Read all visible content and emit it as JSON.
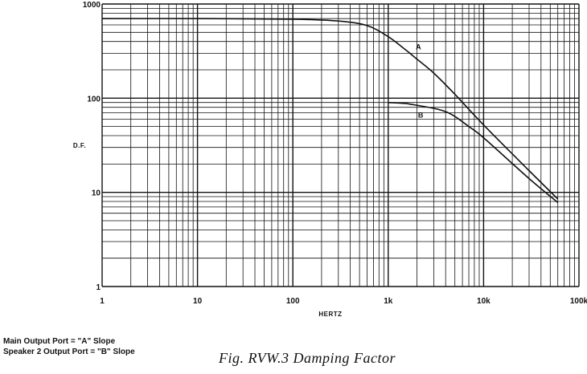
{
  "chart_data": {
    "type": "line",
    "title": "",
    "xlabel": "HERTZ",
    "ylabel": "D.F.",
    "x_scale": "log",
    "y_scale": "log",
    "xlim": [
      1,
      100000
    ],
    "ylim": [
      1,
      1000
    ],
    "grid": true,
    "x_tick_labels": [
      "1",
      "10",
      "100",
      "1k",
      "10k",
      "100k"
    ],
    "y_tick_labels": [
      "1000",
      "100",
      "10",
      "1"
    ],
    "series": [
      {
        "name": "A",
        "x": [
          1,
          10,
          100,
          300,
          600,
          1000,
          1500,
          2000,
          3000,
          5000,
          10000,
          30000,
          60000
        ],
        "y": [
          700,
          700,
          690,
          660,
          590,
          450,
          330,
          260,
          185,
          110,
          52,
          17,
          8.5
        ]
      },
      {
        "name": "B",
        "x": [
          1000,
          1500,
          2000,
          3000,
          4000,
          5000,
          7000,
          10000,
          30000,
          60000
        ],
        "y": [
          90,
          88,
          84,
          78,
          72,
          64,
          50,
          38,
          14,
          7.8
        ]
      }
    ]
  },
  "legend_lines": [
    "Main Output Port = \"A\" Slope",
    "Speaker 2 Output Port = \"B\" Slope"
  ],
  "caption": "Fig. RVW.3  Damping Factor"
}
